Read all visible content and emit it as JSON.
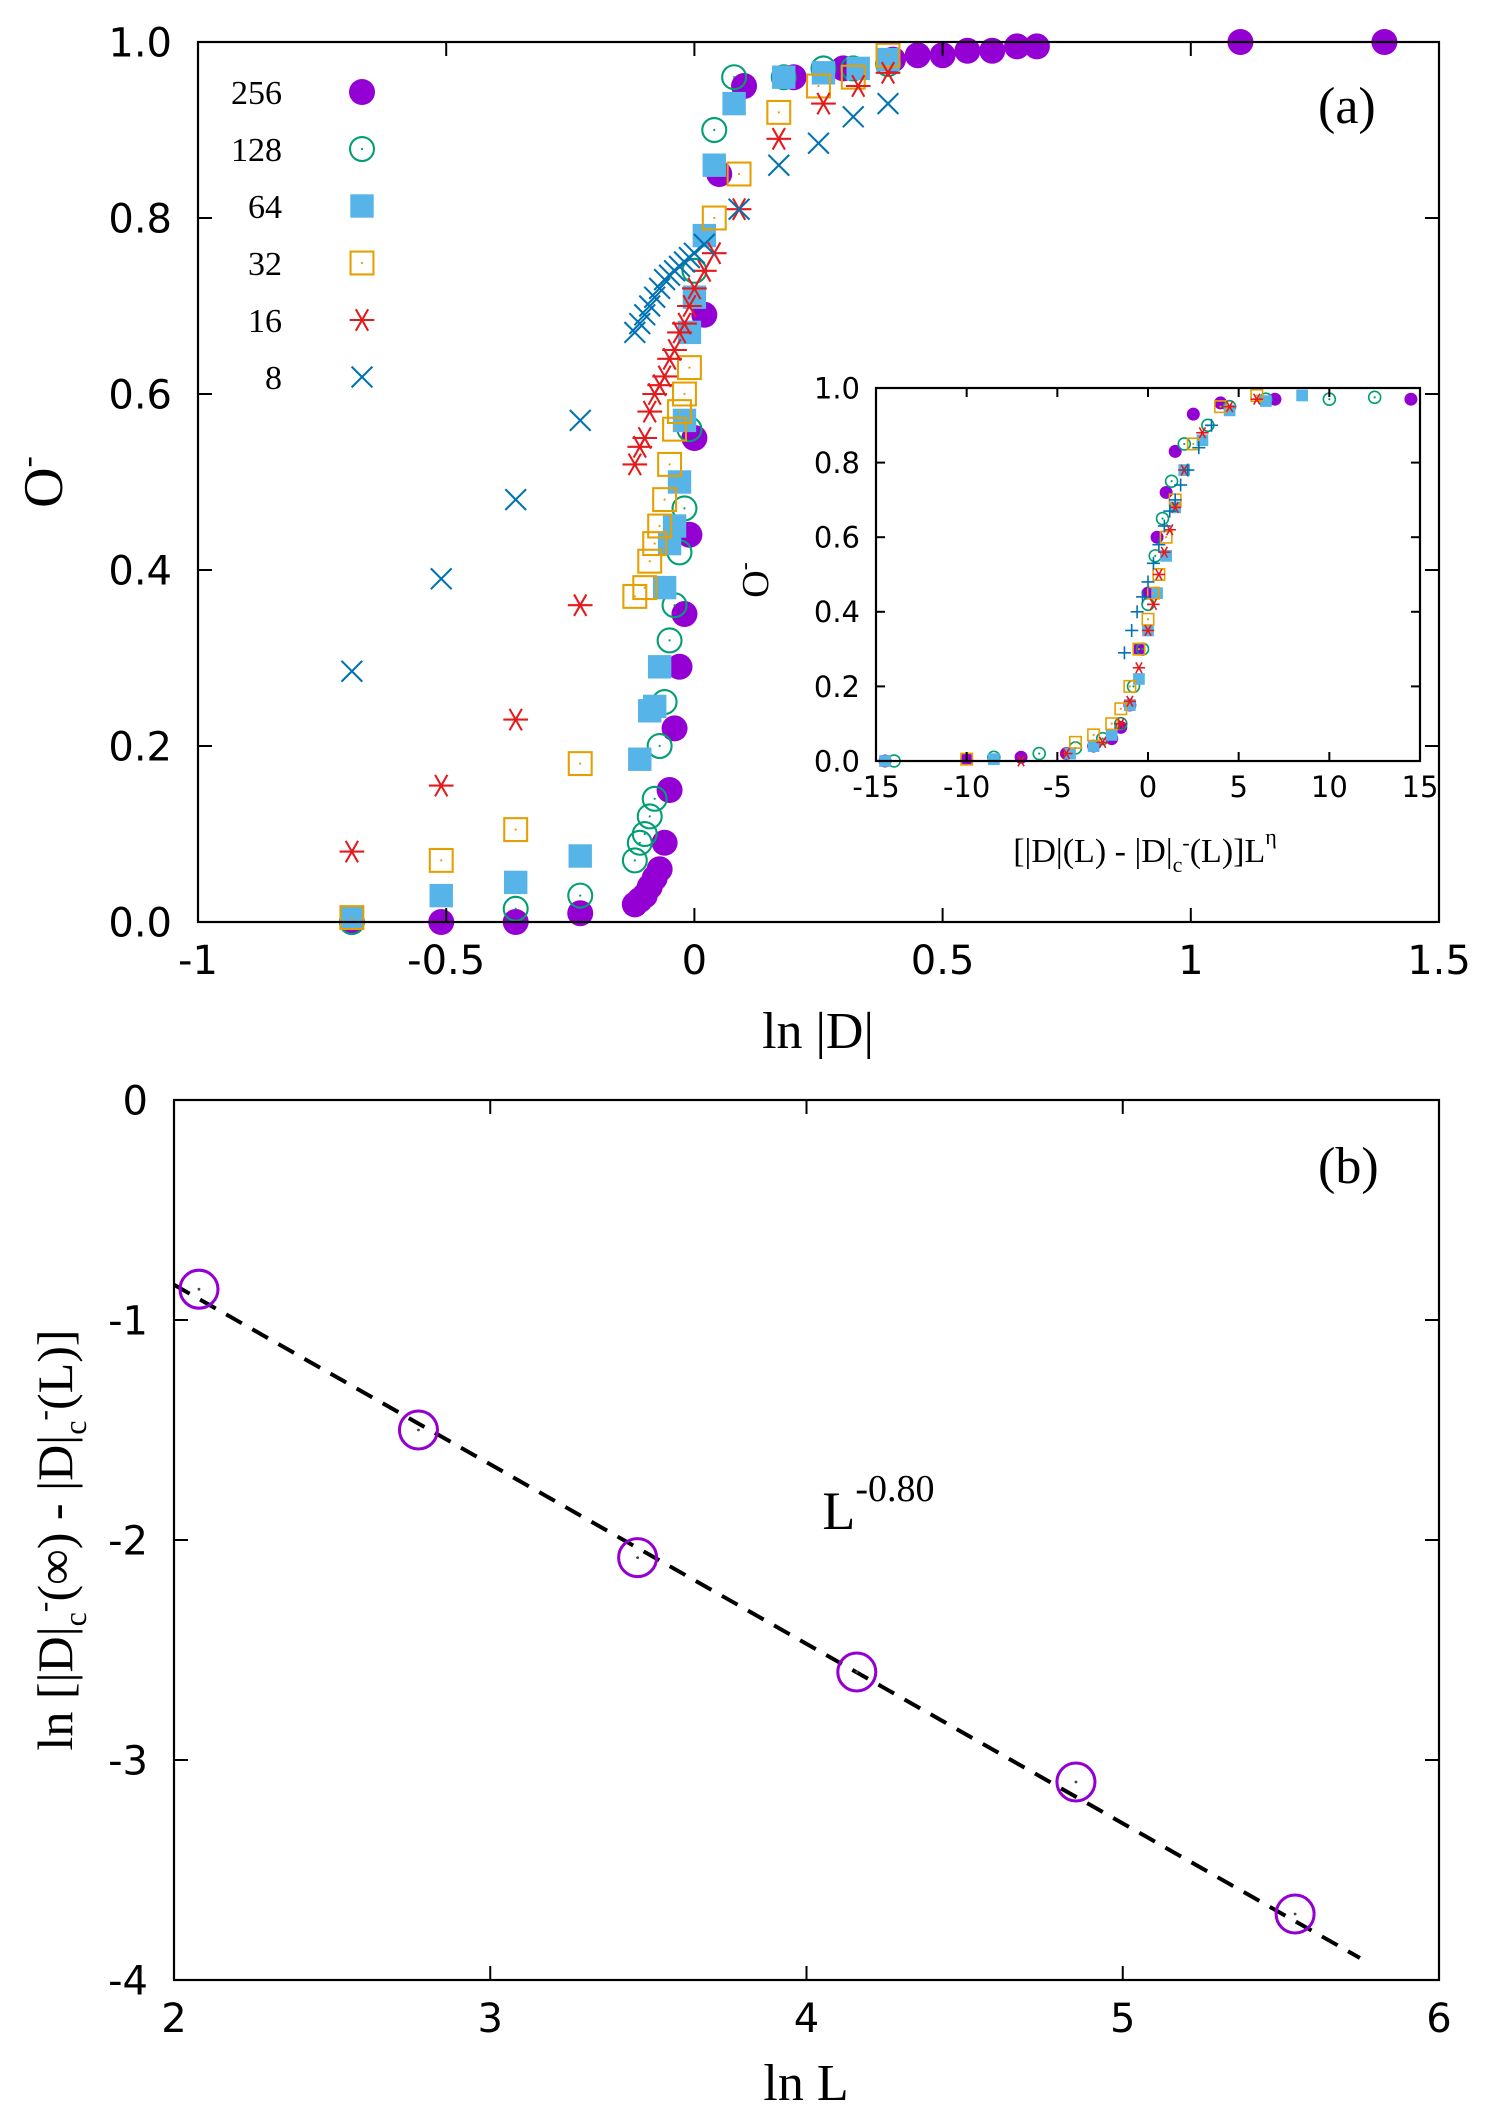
{
  "chart_data": [
    {
      "id": "main-a",
      "type": "scatter",
      "panel_label": "(a)",
      "xlabel": "ln |D|",
      "ylabel": "O",
      "ylabel_sup": "-",
      "xlim": [
        -1,
        1.5
      ],
      "ylim": [
        0,
        1.0
      ],
      "xticks": [
        "-1",
        "-0.5",
        "0",
        "0.5",
        "1",
        "1.5"
      ],
      "yticks": [
        "0.0",
        "0.2",
        "0.4",
        "0.6",
        "0.8",
        "1.0"
      ],
      "xtick_values": [
        -1,
        -0.5,
        0,
        0.5,
        1,
        1.5
      ],
      "ytick_values": [
        0,
        0.2,
        0.4,
        0.6,
        0.8,
        1.0
      ],
      "legend": {
        "position": "top-left"
      },
      "series": [
        {
          "name": "256",
          "marker": "filled-circle",
          "color": "#9400d3",
          "x": [
            -0.69,
            -0.51,
            -0.36,
            -0.23,
            -0.12,
            -0.11,
            -0.1,
            -0.09,
            -0.08,
            -0.07,
            -0.06,
            -0.05,
            -0.04,
            -0.03,
            -0.02,
            -0.01,
            0.0,
            0.02,
            0.05,
            0.1,
            0.2,
            0.3,
            0.4,
            0.45,
            0.5,
            0.55,
            0.6,
            0.65,
            0.69,
            1.1,
            1.39
          ],
          "y": [
            0.0,
            0.0,
            0.0,
            0.01,
            0.02,
            0.025,
            0.03,
            0.04,
            0.05,
            0.06,
            0.09,
            0.15,
            0.22,
            0.29,
            0.35,
            0.44,
            0.55,
            0.69,
            0.85,
            0.95,
            0.96,
            0.97,
            0.98,
            0.985,
            0.985,
            0.99,
            0.99,
            0.995,
            0.995,
            1.0,
            1.0
          ]
        },
        {
          "name": "128",
          "marker": "open-circle",
          "color": "#009e73",
          "x": [
            -0.69,
            -0.36,
            -0.23,
            -0.12,
            -0.11,
            -0.1,
            -0.09,
            -0.08,
            -0.07,
            -0.06,
            -0.05,
            -0.04,
            -0.03,
            -0.02,
            -0.01,
            0.0,
            0.04,
            0.08,
            0.18,
            0.26,
            0.32,
            0.39
          ],
          "y": [
            0.0,
            0.015,
            0.03,
            0.07,
            0.09,
            0.1,
            0.12,
            0.14,
            0.2,
            0.25,
            0.32,
            0.36,
            0.42,
            0.47,
            0.56,
            0.74,
            0.9,
            0.96,
            0.96,
            0.97,
            0.97,
            0.975
          ]
        },
        {
          "name": "64",
          "marker": "filled-square",
          "color": "#56b4e9",
          "x": [
            -0.69,
            -0.51,
            -0.36,
            -0.23,
            -0.11,
            -0.09,
            -0.08,
            -0.07,
            -0.06,
            -0.05,
            -0.04,
            -0.03,
            -0.02,
            -0.01,
            0.0,
            0.02,
            0.04,
            0.08,
            0.18,
            0.26,
            0.33,
            0.39
          ],
          "y": [
            0.005,
            0.03,
            0.045,
            0.075,
            0.185,
            0.24,
            0.245,
            0.29,
            0.38,
            0.43,
            0.45,
            0.5,
            0.57,
            0.67,
            0.71,
            0.78,
            0.86,
            0.93,
            0.96,
            0.965,
            0.97,
            0.98
          ]
        },
        {
          "name": "32",
          "marker": "open-square",
          "color": "#e69f00",
          "x": [
            -0.69,
            -0.51,
            -0.36,
            -0.23,
            -0.12,
            -0.1,
            -0.09,
            -0.08,
            -0.07,
            -0.06,
            -0.05,
            -0.04,
            -0.03,
            -0.02,
            -0.01,
            0.04,
            0.09,
            0.17,
            0.25,
            0.32,
            0.39
          ],
          "y": [
            0.005,
            0.07,
            0.105,
            0.18,
            0.37,
            0.38,
            0.41,
            0.43,
            0.45,
            0.48,
            0.52,
            0.56,
            0.58,
            0.6,
            0.63,
            0.8,
            0.85,
            0.92,
            0.95,
            0.96,
            0.985
          ]
        },
        {
          "name": "16",
          "marker": "asterisk",
          "color": "#e41a1c",
          "x": [
            -0.69,
            -0.51,
            -0.36,
            -0.23,
            -0.12,
            -0.11,
            -0.1,
            -0.09,
            -0.08,
            -0.07,
            -0.06,
            -0.05,
            -0.04,
            -0.03,
            -0.02,
            -0.01,
            0.0,
            0.02,
            0.04,
            0.09,
            0.17,
            0.26,
            0.33,
            0.39
          ],
          "y": [
            0.08,
            0.155,
            0.23,
            0.36,
            0.52,
            0.54,
            0.55,
            0.58,
            0.6,
            0.61,
            0.62,
            0.64,
            0.65,
            0.67,
            0.68,
            0.7,
            0.72,
            0.74,
            0.76,
            0.81,
            0.89,
            0.93,
            0.95,
            0.965
          ]
        },
        {
          "name": "8",
          "marker": "cross",
          "color": "#0072b2",
          "x": [
            -0.69,
            -0.51,
            -0.36,
            -0.23,
            -0.12,
            -0.11,
            -0.1,
            -0.09,
            -0.08,
            -0.07,
            -0.06,
            -0.05,
            -0.04,
            -0.03,
            -0.02,
            -0.01,
            0.0,
            0.02,
            0.09,
            0.17,
            0.25,
            0.32,
            0.39
          ],
          "y": [
            0.285,
            0.39,
            0.48,
            0.57,
            0.67,
            0.68,
            0.69,
            0.7,
            0.71,
            0.72,
            0.73,
            0.735,
            0.74,
            0.745,
            0.75,
            0.755,
            0.76,
            0.77,
            0.81,
            0.86,
            0.885,
            0.915,
            0.93
          ]
        }
      ]
    },
    {
      "id": "inset-a",
      "type": "scatter",
      "xlabel_parts": [
        "[|D|(L) - |D|",
        "c",
        "-",
        "(L)]L",
        "η"
      ],
      "ylabel": "O",
      "ylabel_sup": "-",
      "xlim": [
        -15,
        15
      ],
      "ylim": [
        0,
        1.0
      ],
      "xticks": [
        "-15",
        "-10",
        "-5",
        "0",
        "5",
        "10",
        "15"
      ],
      "yticks": [
        "0.0",
        "0.2",
        "0.4",
        "0.6",
        "0.8",
        "1.0"
      ],
      "xtick_values": [
        -15,
        -10,
        -5,
        0,
        5,
        10,
        15
      ],
      "ytick_values": [
        0,
        0.2,
        0.4,
        0.6,
        0.8,
        1.0
      ],
      "series": [
        {
          "name": "256",
          "marker": "filled-circle",
          "color": "#9400d3",
          "x": [
            -14.5,
            -10,
            -7,
            -4.5,
            -3,
            -2,
            -1.5,
            -1,
            -0.5,
            0,
            0.5,
            1,
            1.5,
            2.5,
            4,
            7,
            14.5
          ],
          "y": [
            0.0,
            0.005,
            0.01,
            0.02,
            0.04,
            0.06,
            0.09,
            0.15,
            0.3,
            0.45,
            0.6,
            0.72,
            0.83,
            0.93,
            0.96,
            0.97,
            0.97
          ]
        },
        {
          "name": "128",
          "marker": "open-circle",
          "color": "#009e73",
          "x": [
            -14,
            -8.5,
            -6,
            -4,
            -2.5,
            -1.5,
            -0.8,
            -0.3,
            0,
            0.4,
            0.8,
            1.3,
            2,
            3.3,
            4.5,
            6.5,
            10,
            12.5
          ],
          "y": [
            0.0,
            0.01,
            0.02,
            0.035,
            0.06,
            0.1,
            0.2,
            0.3,
            0.42,
            0.55,
            0.65,
            0.75,
            0.85,
            0.9,
            0.95,
            0.97,
            0.97,
            0.975
          ]
        },
        {
          "name": "64",
          "marker": "filled-square",
          "color": "#56b4e9",
          "x": [
            -14.5,
            -8.5,
            -4.3,
            -3,
            -2,
            -1,
            -0.5,
            0,
            0.5,
            1,
            1.5,
            2,
            3,
            4.5,
            6.5,
            8.5
          ],
          "y": [
            0.0,
            0.005,
            0.02,
            0.04,
            0.07,
            0.15,
            0.22,
            0.35,
            0.45,
            0.55,
            0.68,
            0.78,
            0.86,
            0.94,
            0.965,
            0.98
          ]
        },
        {
          "name": "32",
          "marker": "open-square",
          "color": "#e69f00",
          "x": [
            -10,
            -4,
            -3,
            -2,
            -1.5,
            -1,
            -0.5,
            0,
            0.3,
            0.6,
            1,
            1.5,
            2.5,
            4,
            6
          ],
          "y": [
            0.005,
            0.05,
            0.07,
            0.1,
            0.14,
            0.2,
            0.3,
            0.38,
            0.45,
            0.5,
            0.6,
            0.7,
            0.85,
            0.95,
            0.98
          ]
        },
        {
          "name": "16",
          "marker": "asterisk",
          "color": "#e41a1c",
          "x": [
            -7,
            -4.5,
            -2.5,
            -1.5,
            -1,
            -0.5,
            0,
            0.3,
            0.6,
            0.9,
            1.2,
            1.5,
            2,
            3,
            4.5,
            6
          ],
          "y": [
            0.0,
            0.02,
            0.05,
            0.1,
            0.16,
            0.25,
            0.35,
            0.42,
            0.5,
            0.56,
            0.62,
            0.68,
            0.78,
            0.88,
            0.95,
            0.97
          ]
        },
        {
          "name": "8",
          "marker": "plus",
          "color": "#0072b2",
          "x": [
            -1.3,
            -0.9,
            -0.6,
            -0.3,
            0,
            0.3,
            0.6,
            0.9,
            1.2,
            1.5,
            1.8,
            2.2,
            2.8,
            3.5
          ],
          "y": [
            0.29,
            0.35,
            0.4,
            0.44,
            0.48,
            0.53,
            0.58,
            0.63,
            0.67,
            0.7,
            0.74,
            0.78,
            0.84,
            0.9
          ]
        }
      ]
    },
    {
      "id": "panel-b",
      "type": "scatter",
      "panel_label": "(b)",
      "xlabel": "ln L",
      "ylabel_parts": [
        "ln [|D|",
        "c",
        "-",
        "(∞) - |D|",
        "c",
        "-",
        "(L)]"
      ],
      "xlim": [
        2,
        6
      ],
      "ylim": [
        -4,
        0
      ],
      "xticks": [
        "2",
        "3",
        "4",
        "5",
        "6"
      ],
      "yticks": [
        "-4",
        "-3",
        "-2",
        "-1",
        "0"
      ],
      "xtick_values": [
        2,
        3,
        4,
        5,
        6
      ],
      "ytick_values": [
        -4,
        -3,
        -2,
        -1,
        0
      ],
      "annotation": {
        "base": "L",
        "exponent": "-0.80",
        "at": [
          4.05,
          -1.95
        ]
      },
      "series": [
        {
          "name": "data",
          "marker": "open-circle-dot",
          "color": "#9400d3",
          "x": [
            2.079,
            2.773,
            3.466,
            4.159,
            4.852,
            5.545
          ],
          "y": [
            -0.86,
            -1.5,
            -2.08,
            -2.6,
            -3.1,
            -3.7
          ]
        }
      ],
      "fit": {
        "name": "fit",
        "style": "dashed",
        "color": "#000000",
        "x": [
          2.0,
          5.75
        ],
        "y": [
          -0.84,
          -3.9
        ]
      }
    }
  ]
}
